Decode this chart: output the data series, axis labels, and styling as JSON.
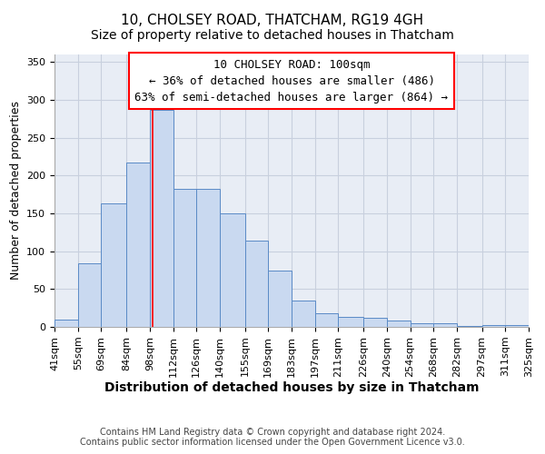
{
  "title": "10, CHOLSEY ROAD, THATCHAM, RG19 4GH",
  "subtitle": "Size of property relative to detached houses in Thatcham",
  "xlabel": "Distribution of detached houses by size in Thatcham",
  "ylabel": "Number of detached properties",
  "bar_left_edges": [
    41,
    55,
    69,
    84,
    98,
    112,
    126,
    140,
    155,
    169,
    183,
    197,
    211,
    226,
    240,
    254,
    268,
    282,
    297,
    311
  ],
  "bar_widths": [
    14,
    14,
    15,
    14,
    14,
    14,
    14,
    15,
    14,
    14,
    14,
    14,
    15,
    14,
    14,
    14,
    14,
    15,
    14,
    14
  ],
  "bar_heights": [
    10,
    84,
    163,
    217,
    287,
    182,
    182,
    150,
    114,
    75,
    35,
    18,
    13,
    12,
    8,
    5,
    5,
    1,
    2,
    3
  ],
  "bar_color": "#c9d9f0",
  "bar_edge_color": "#5a8ac6",
  "tick_labels": [
    "41sqm",
    "55sqm",
    "69sqm",
    "84sqm",
    "98sqm",
    "112sqm",
    "126sqm",
    "140sqm",
    "155sqm",
    "169sqm",
    "183sqm",
    "197sqm",
    "211sqm",
    "226sqm",
    "240sqm",
    "254sqm",
    "268sqm",
    "282sqm",
    "297sqm",
    "311sqm",
    "325sqm"
  ],
  "ylim": [
    0,
    360
  ],
  "yticks": [
    0,
    50,
    100,
    150,
    200,
    250,
    300,
    350
  ],
  "red_line_x": 100,
  "annotation_line1": "10 CHOLSEY ROAD: 100sqm",
  "annotation_line2": "← 36% of detached houses are smaller (486)",
  "annotation_line3": "63% of semi-detached houses are larger (864) →",
  "footer_text": "Contains HM Land Registry data © Crown copyright and database right 2024.\nContains public sector information licensed under the Open Government Licence v3.0.",
  "background_color": "#ffffff",
  "plot_bg_color": "#e8edf5",
  "grid_color": "#c8d0de",
  "title_fontsize": 11,
  "subtitle_fontsize": 10,
  "xlabel_fontsize": 10,
  "ylabel_fontsize": 9,
  "tick_fontsize": 8,
  "annotation_fontsize": 9,
  "footer_fontsize": 7
}
